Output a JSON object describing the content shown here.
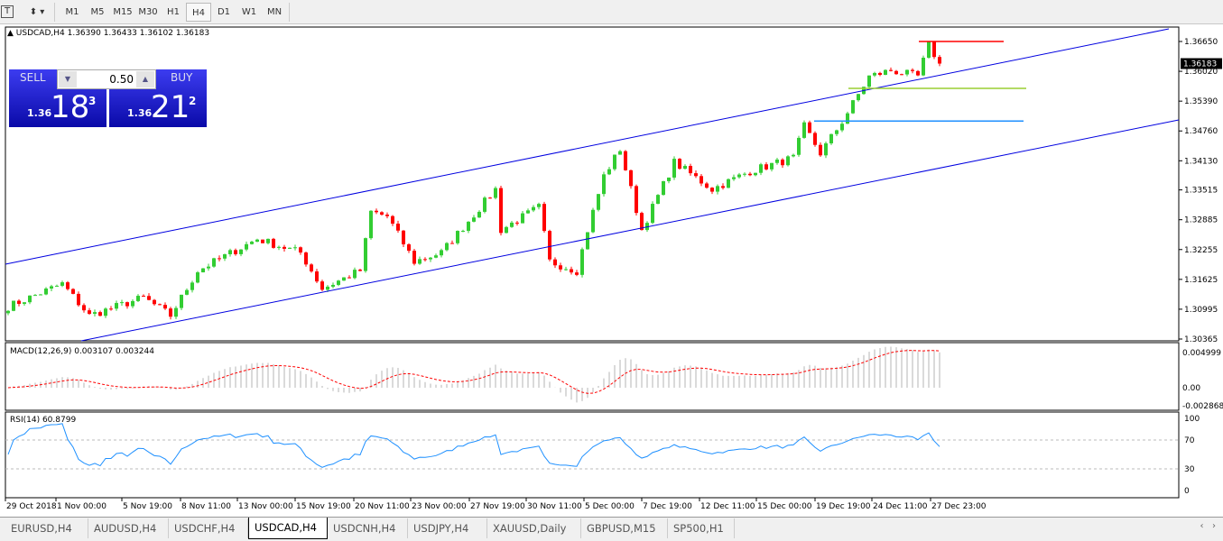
{
  "toolbar": {
    "timeframes": [
      "M1",
      "M5",
      "M15",
      "M30",
      "H1",
      "H4",
      "D1",
      "W1",
      "MN"
    ],
    "active": "H4",
    "text_icon": "T",
    "tools_icon": "drawing-tools-icon"
  },
  "chart": {
    "header": "USDCAD,H4  1.36390 1.36433 1.36102 1.36183",
    "current_price": "1.36183",
    "price_ticks": [
      "1.36650",
      "1.36020",
      "1.35390",
      "1.34760",
      "1.34130",
      "1.33515",
      "1.32885",
      "1.32255",
      "1.31625",
      "1.30995",
      "1.30365"
    ],
    "price_range": [
      1.30365,
      1.3665
    ],
    "time_labels": [
      "29 Oct 2018",
      "1 Nov 00:00",
      "5 Nov 19:00",
      "8 Nov 11:00",
      "13 Nov 00:00",
      "15 Nov 19:00",
      "20 Nov 11:00",
      "23 Nov 00:00",
      "27 Nov 19:00",
      "30 Nov 11:00",
      "5 Dec 00:00",
      "7 Dec 19:00",
      "12 Dec 11:00",
      "15 Dec 00:00",
      "19 Dec 19:00",
      "24 Dec 11:00",
      "27 Dec 23:00"
    ],
    "bars": 173,
    "close_waypoints": [
      [
        0,
        1.3105
      ],
      [
        10,
        1.3153
      ],
      [
        15,
        1.3086
      ],
      [
        25,
        1.3124
      ],
      [
        30,
        1.3086
      ],
      [
        35,
        1.3181
      ],
      [
        46,
        1.3248
      ],
      [
        54,
        1.3219
      ],
      [
        58,
        1.3143
      ],
      [
        65,
        1.3181
      ],
      [
        67,
        1.3305
      ],
      [
        70,
        1.3296
      ],
      [
        75,
        1.32
      ],
      [
        80,
        1.3219
      ],
      [
        90,
        1.3353
      ],
      [
        91,
        1.3267
      ],
      [
        98,
        1.3315
      ],
      [
        100,
        1.32
      ],
      [
        105,
        1.3181
      ],
      [
        107,
        1.3267
      ],
      [
        110,
        1.3381
      ],
      [
        113,
        1.3438
      ],
      [
        117,
        1.3267
      ],
      [
        123,
        1.341
      ],
      [
        130,
        1.3353
      ],
      [
        137,
        1.3391
      ],
      [
        145,
        1.3419
      ],
      [
        147,
        1.3486
      ],
      [
        150,
        1.3429
      ],
      [
        154,
        1.3496
      ],
      [
        159,
        1.3591
      ],
      [
        163,
        1.3604
      ],
      [
        168,
        1.3591
      ],
      [
        170,
        1.3657
      ],
      [
        172,
        1.36183
      ]
    ],
    "colors": {
      "bull": "#32cd32",
      "bear": "#ff0000",
      "channel": "#0000e0"
    },
    "horizontal_lines": [
      {
        "price": 1.3665,
        "color": "#ff0000"
      },
      {
        "price": 1.3566,
        "color": "#9acd32"
      },
      {
        "price": 1.3497,
        "color": "#1e90ff"
      }
    ]
  },
  "trade_panel": {
    "sell_label": "SELL",
    "buy_label": "BUY",
    "lot": "0.50",
    "sell_prefix": "1.36",
    "sell_big": "18",
    "sell_sup": "3",
    "buy_prefix": "1.36",
    "buy_big": "21",
    "buy_sup": "2"
  },
  "macd": {
    "label": "MACD(12,26,9) 0.003107 0.003244",
    "ticks": [
      "0.004999",
      "0.00",
      "-0.002868"
    ],
    "range": [
      -0.002868,
      0.004999
    ]
  },
  "rsi": {
    "label": "RSI(14) 60.8799",
    "ticks": [
      "100",
      "70",
      "30",
      "0"
    ]
  },
  "tabs": [
    "EURUSD,H4",
    "AUDUSD,H4",
    "USDCHF,H4",
    "USDCAD,H4",
    "USDCNH,H4",
    "USDJPY,H4",
    "XAUUSD,Daily",
    "GBPUSD,M15",
    "SP500,H1"
  ],
  "active_tab": "USDCAD,H4"
}
